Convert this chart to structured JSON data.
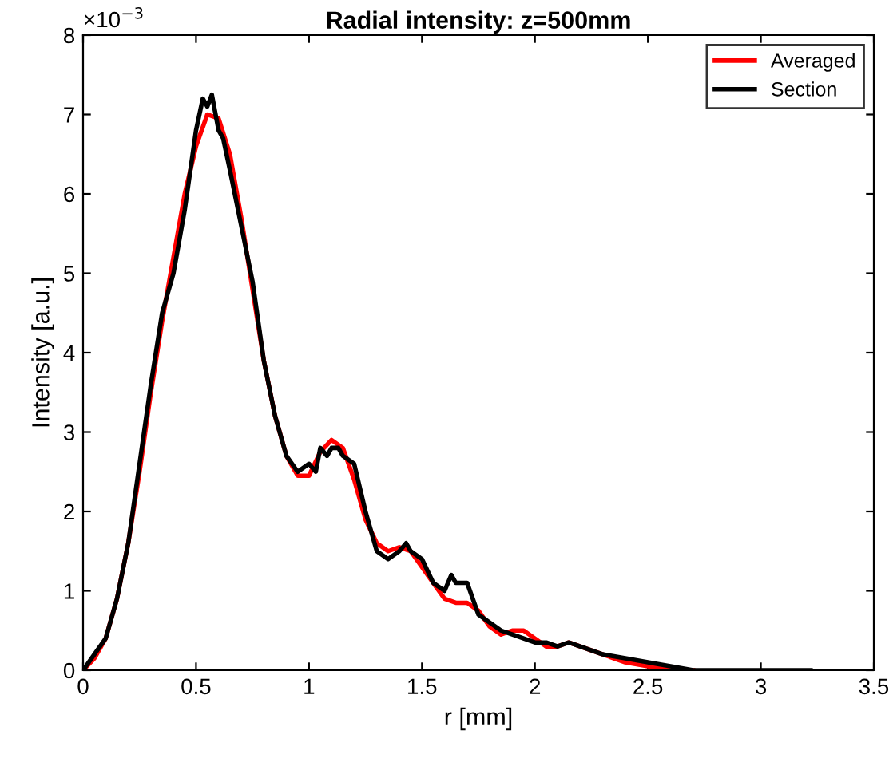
{
  "chart_data": {
    "type": "line",
    "title": "Radial intensity: z=500mm",
    "xlabel": "r [mm]",
    "ylabel": "Intensity [a.u.]",
    "annotations": [
      "×10$^{−3}$"
    ],
    "xlim": [
      0,
      3.5
    ],
    "xticks": [
      0,
      0.5,
      1,
      1.5,
      2,
      2.5,
      3,
      3.5
    ],
    "ylim": [
      0,
      8
    ],
    "yticks": [
      0,
      1,
      2,
      3,
      4,
      5,
      6,
      7,
      8
    ],
    "grid": false,
    "legend": "top right",
    "marker": "none",
    "line_style": "solid",
    "series": [
      {
        "name": "Averaged",
        "color": "#ff0000",
        "x": [
          0,
          0.05,
          0.1,
          0.15,
          0.2,
          0.25,
          0.3,
          0.35,
          0.4,
          0.45,
          0.5,
          0.55,
          0.6,
          0.65,
          0.7,
          0.75,
          0.8,
          0.85,
          0.9,
          0.95,
          1.0,
          1.05,
          1.1,
          1.15,
          1.2,
          1.25,
          1.3,
          1.35,
          1.4,
          1.45,
          1.5,
          1.55,
          1.6,
          1.65,
          1.7,
          1.75,
          1.8,
          1.85,
          1.9,
          1.95,
          2.0,
          2.05,
          2.1,
          2.15,
          2.2,
          2.3,
          2.4,
          2.5,
          2.6,
          2.7
        ],
        "values": [
          0.0,
          0.15,
          0.4,
          0.9,
          1.6,
          2.5,
          3.5,
          4.4,
          5.2,
          6.0,
          6.6,
          7.0,
          6.95,
          6.5,
          5.7,
          4.8,
          3.9,
          3.2,
          2.7,
          2.45,
          2.45,
          2.75,
          2.9,
          2.8,
          2.4,
          1.9,
          1.6,
          1.5,
          1.55,
          1.5,
          1.3,
          1.1,
          0.9,
          0.85,
          0.85,
          0.75,
          0.55,
          0.45,
          0.5,
          0.5,
          0.4,
          0.3,
          0.3,
          0.35,
          0.3,
          0.2,
          0.1,
          0.05,
          0.0,
          0.0
        ]
      },
      {
        "name": "Section",
        "color": "#000000",
        "x": [
          0,
          0.05,
          0.1,
          0.15,
          0.2,
          0.25,
          0.3,
          0.35,
          0.4,
          0.45,
          0.5,
          0.53,
          0.55,
          0.57,
          0.6,
          0.62,
          0.65,
          0.7,
          0.75,
          0.8,
          0.85,
          0.9,
          0.95,
          1.0,
          1.03,
          1.05,
          1.08,
          1.1,
          1.13,
          1.15,
          1.2,
          1.25,
          1.3,
          1.35,
          1.4,
          1.43,
          1.45,
          1.5,
          1.55,
          1.6,
          1.63,
          1.65,
          1.7,
          1.75,
          1.8,
          1.85,
          1.9,
          1.95,
          2.0,
          2.05,
          2.1,
          2.15,
          2.2,
          2.3,
          2.4,
          2.5,
          2.6,
          2.7,
          3.0,
          3.22
        ],
        "values": [
          0.0,
          0.2,
          0.4,
          0.9,
          1.6,
          2.6,
          3.6,
          4.5,
          5.0,
          5.8,
          6.8,
          7.2,
          7.1,
          7.25,
          6.8,
          6.7,
          6.3,
          5.6,
          4.9,
          3.9,
          3.2,
          2.7,
          2.5,
          2.6,
          2.5,
          2.8,
          2.7,
          2.8,
          2.8,
          2.7,
          2.6,
          2.0,
          1.5,
          1.4,
          1.5,
          1.6,
          1.5,
          1.4,
          1.1,
          1.0,
          1.2,
          1.1,
          1.1,
          0.7,
          0.6,
          0.5,
          0.45,
          0.4,
          0.35,
          0.35,
          0.3,
          0.35,
          0.3,
          0.2,
          0.15,
          0.1,
          0.05,
          0.0,
          0.0,
          0.0
        ]
      }
    ]
  }
}
